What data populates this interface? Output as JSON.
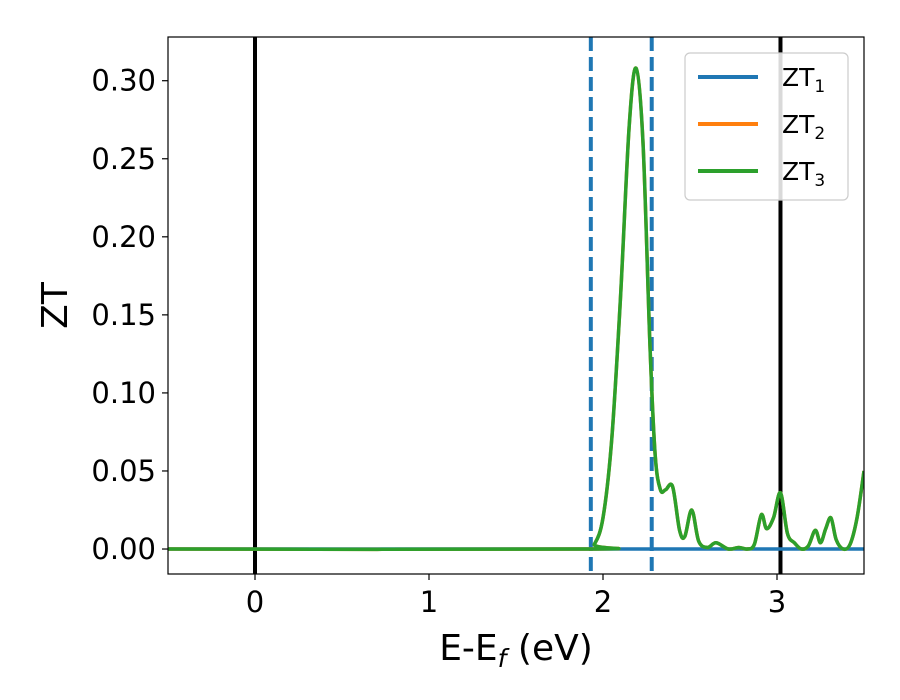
{
  "chart_data": {
    "type": "line",
    "xlabel": {
      "main": "E-E",
      "sub": "f",
      "tail": " (eV)"
    },
    "ylabel": "ZT",
    "xlim": [
      -0.5,
      3.5
    ],
    "ylim": [
      -0.016,
      0.328
    ],
    "xticks": [
      0,
      1,
      2,
      3
    ],
    "xtick_labels": [
      "0",
      "1",
      "2",
      "3"
    ],
    "yticks": [
      0.0,
      0.05,
      0.1,
      0.15,
      0.2,
      0.25,
      0.3
    ],
    "ytick_labels": [
      "0.00",
      "0.05",
      "0.10",
      "0.15",
      "0.20",
      "0.25",
      "0.30"
    ],
    "grid": false,
    "legend_position": "top-right",
    "vlines": [
      {
        "x": 0.0,
        "style": "solid",
        "color": "#000000"
      },
      {
        "x": 3.02,
        "style": "solid",
        "color": "#000000"
      },
      {
        "x": 1.93,
        "style": "dashed",
        "color": "#1f77b4"
      },
      {
        "x": 2.28,
        "style": "dashed",
        "color": "#1f77b4"
      }
    ],
    "series": [
      {
        "name": {
          "main": "ZT",
          "sub": "1"
        },
        "color": "#1f77b4",
        "x": [
          -0.5,
          3.5
        ],
        "y": [
          0.0,
          0.0
        ]
      },
      {
        "name": {
          "main": "ZT",
          "sub": "2"
        },
        "color": "#ff7f0e",
        "x": [
          -0.5,
          1.9,
          1.95,
          2.0,
          2.05,
          2.1,
          2.15,
          2.19,
          2.23,
          2.27,
          2.3,
          2.33,
          2.36,
          2.4,
          2.44,
          2.47,
          2.51,
          2.55,
          2.6,
          2.65,
          2.72,
          2.78,
          2.83,
          2.87,
          2.91,
          2.94,
          2.98,
          3.02,
          3.06,
          3.1,
          3.14,
          3.18,
          3.22,
          3.25,
          3.28,
          3.31,
          3.34,
          3.38,
          3.42,
          3.46,
          3.5
        ],
        "y": [
          0.0,
          0.0,
          0.003,
          0.02,
          0.07,
          0.16,
          0.27,
          0.308,
          0.26,
          0.13,
          0.06,
          0.038,
          0.038,
          0.04,
          0.012,
          0.008,
          0.025,
          0.005,
          0.001,
          0.004,
          0.0,
          0.001,
          0.0,
          0.003,
          0.022,
          0.013,
          0.02,
          0.036,
          0.01,
          0.004,
          0.0,
          0.002,
          0.012,
          0.004,
          0.013,
          0.02,
          0.006,
          0.0,
          0.003,
          0.02,
          0.05
        ]
      },
      {
        "name": {
          "main": "ZT",
          "sub": "3"
        },
        "color": "#2ca02c",
        "x": [
          -0.5,
          1.9,
          1.95,
          2.0,
          2.05,
          2.1,
          2.15,
          2.19,
          2.23,
          2.27,
          2.3,
          2.33,
          2.36,
          2.4,
          2.44,
          2.47,
          2.51,
          2.55,
          2.6,
          2.65,
          2.72,
          2.78,
          2.83,
          2.87,
          2.91,
          2.94,
          2.98,
          3.02,
          3.06,
          3.1,
          3.14,
          3.18,
          3.22,
          3.25,
          3.28,
          3.31,
          3.34,
          3.38,
          3.42,
          3.46,
          3.5
        ],
        "y": [
          0.0,
          0.0,
          0.003,
          0.02,
          0.07,
          0.16,
          0.27,
          0.308,
          0.26,
          0.13,
          0.06,
          0.038,
          0.038,
          0.04,
          0.012,
          0.008,
          0.025,
          0.005,
          0.001,
          0.004,
          0.0,
          0.001,
          0.0,
          0.003,
          0.022,
          0.013,
          0.02,
          0.036,
          0.01,
          0.004,
          0.0,
          0.002,
          0.012,
          0.004,
          0.013,
          0.02,
          0.006,
          0.0,
          0.003,
          0.02,
          0.05
        ]
      }
    ]
  }
}
